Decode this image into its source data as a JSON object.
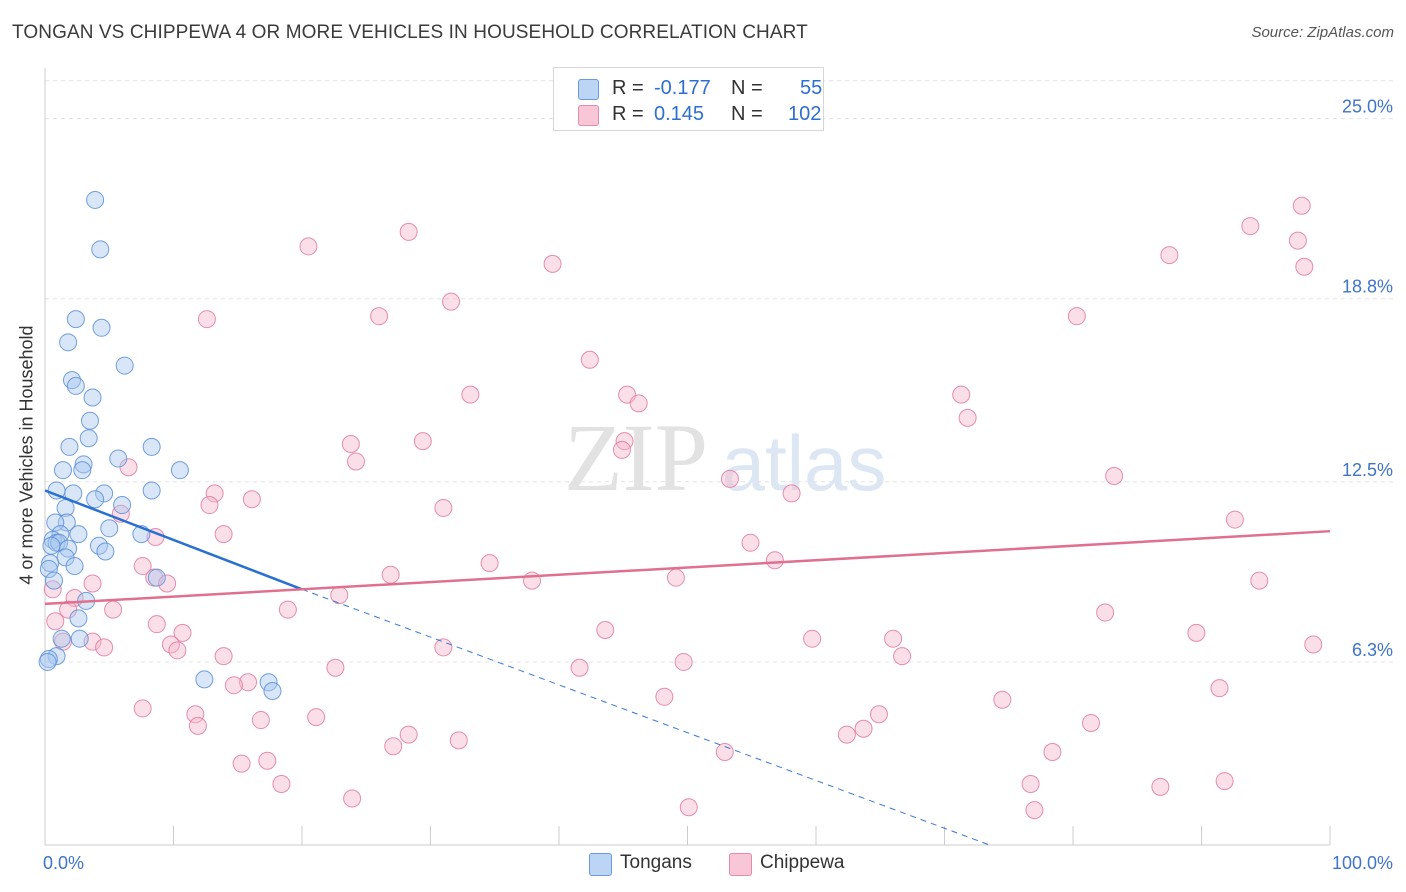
{
  "title": "TONGAN VS CHIPPEWA 4 OR MORE VEHICLES IN HOUSEHOLD CORRELATION CHART",
  "source": "Source: ZipAtlas.com",
  "watermark": {
    "zip": "ZIP",
    "atlas": "atlas"
  },
  "legend": {
    "r_label": "R =",
    "n_label": "N =",
    "rows": [
      {
        "name": "Tongans",
        "r": "-0.177",
        "n": "55",
        "color": "#a8c8f0",
        "stroke": "#5b8fd6"
      },
      {
        "name": "Chippewa",
        "r": "0.145",
        "n": "102",
        "color": "#f6b8cb",
        "stroke": "#e07ba0"
      }
    ]
  },
  "chart_data": {
    "type": "scatter",
    "title": "TONGAN VS CHIPPEWA 4 OR MORE VEHICLES IN HOUSEHOLD CORRELATION CHART",
    "xlabel": "",
    "ylabel": "4 or more Vehicles in Household",
    "xlim": [
      0,
      100
    ],
    "ylim": [
      0,
      26.5
    ],
    "x_tick_labels": [
      "0.0%",
      "100.0%"
    ],
    "y_ticks": [
      6.3,
      12.5,
      18.8,
      25.0
    ],
    "y_tick_labels": [
      "6.3%",
      "12.5%",
      "18.8%",
      "25.0%"
    ],
    "grid": true,
    "series": [
      {
        "name": "Tongans",
        "color": "#a8c8f0",
        "stroke": "#5b8fd6",
        "trend": {
          "x0": 0,
          "y0": 12.2,
          "x1": 20,
          "y1": 8.8,
          "dash_to_x": 73.5,
          "dash_to_y": 0
        },
        "points": [
          [
            3.9,
            22.2
          ],
          [
            4.3,
            20.5
          ],
          [
            2.4,
            18.1
          ],
          [
            4.4,
            17.8
          ],
          [
            1.8,
            17.3
          ],
          [
            6.2,
            16.5
          ],
          [
            2.1,
            16.0
          ],
          [
            2.4,
            15.8
          ],
          [
            3.7,
            15.4
          ],
          [
            3.5,
            14.6
          ],
          [
            3.4,
            14.0
          ],
          [
            1.9,
            13.7
          ],
          [
            8.3,
            13.7
          ],
          [
            5.7,
            13.3
          ],
          [
            3.0,
            13.1
          ],
          [
            2.9,
            12.9
          ],
          [
            1.4,
            12.9
          ],
          [
            10.5,
            12.9
          ],
          [
            0.9,
            12.2
          ],
          [
            2.2,
            12.1
          ],
          [
            4.6,
            12.1
          ],
          [
            8.3,
            12.2
          ],
          [
            3.9,
            11.9
          ],
          [
            6.0,
            11.7
          ],
          [
            1.6,
            11.6
          ],
          [
            1.7,
            11.1
          ],
          [
            0.8,
            11.1
          ],
          [
            5.0,
            10.9
          ],
          [
            7.5,
            10.7
          ],
          [
            2.6,
            10.7
          ],
          [
            1.2,
            10.7
          ],
          [
            0.6,
            10.5
          ],
          [
            0.9,
            10.4
          ],
          [
            1.1,
            10.4
          ],
          [
            0.5,
            10.3
          ],
          [
            4.2,
            10.3
          ],
          [
            1.8,
            10.2
          ],
          [
            4.7,
            10.1
          ],
          [
            1.6,
            9.9
          ],
          [
            0.4,
            9.7
          ],
          [
            2.3,
            9.6
          ],
          [
            0.3,
            9.5
          ],
          [
            0.7,
            9.1
          ],
          [
            8.7,
            9.2
          ],
          [
            3.2,
            8.4
          ],
          [
            2.6,
            7.8
          ],
          [
            1.3,
            7.1
          ],
          [
            2.7,
            7.1
          ],
          [
            0.9,
            6.5
          ],
          [
            0.3,
            6.4
          ],
          [
            0.2,
            6.3
          ],
          [
            12.4,
            5.7
          ],
          [
            17.4,
            5.6
          ],
          [
            17.7,
            5.3
          ]
        ]
      },
      {
        "name": "Chippewa",
        "color": "#f6b8cb",
        "stroke": "#e07ba0",
        "trend": {
          "x0": 0,
          "y0": 8.3,
          "x1": 100,
          "y1": 10.8
        },
        "points": [
          [
            97.8,
            22.0
          ],
          [
            93.8,
            21.3
          ],
          [
            97.5,
            20.8
          ],
          [
            28.3,
            21.1
          ],
          [
            20.5,
            20.6
          ],
          [
            87.5,
            20.3
          ],
          [
            98.0,
            19.9
          ],
          [
            39.5,
            20.0
          ],
          [
            31.6,
            18.7
          ],
          [
            12.6,
            18.1
          ],
          [
            26.0,
            18.2
          ],
          [
            80.3,
            18.2
          ],
          [
            42.4,
            16.7
          ],
          [
            45.3,
            15.5
          ],
          [
            46.2,
            15.2
          ],
          [
            33.1,
            15.5
          ],
          [
            71.3,
            15.5
          ],
          [
            71.8,
            14.7
          ],
          [
            23.8,
            13.8
          ],
          [
            29.4,
            13.9
          ],
          [
            45.1,
            13.9
          ],
          [
            24.2,
            13.2
          ],
          [
            44.9,
            13.6
          ],
          [
            6.5,
            13.0
          ],
          [
            83.2,
            12.7
          ],
          [
            53.3,
            12.6
          ],
          [
            58.1,
            12.1
          ],
          [
            13.2,
            12.1
          ],
          [
            16.1,
            11.9
          ],
          [
            12.8,
            11.7
          ],
          [
            31.0,
            11.6
          ],
          [
            5.9,
            11.4
          ],
          [
            92.6,
            11.2
          ],
          [
            13.9,
            10.7
          ],
          [
            8.6,
            10.6
          ],
          [
            54.9,
            10.4
          ],
          [
            56.8,
            9.8
          ],
          [
            34.6,
            9.7
          ],
          [
            7.6,
            9.6
          ],
          [
            26.9,
            9.3
          ],
          [
            8.5,
            9.2
          ],
          [
            37.9,
            9.1
          ],
          [
            49.1,
            9.2
          ],
          [
            94.5,
            9.1
          ],
          [
            9.5,
            9.0
          ],
          [
            3.7,
            9.0
          ],
          [
            2.3,
            8.5
          ],
          [
            22.9,
            8.6
          ],
          [
            1.8,
            8.1
          ],
          [
            5.3,
            8.1
          ],
          [
            18.9,
            8.1
          ],
          [
            82.5,
            8.0
          ],
          [
            0.8,
            7.7
          ],
          [
            8.7,
            7.6
          ],
          [
            43.6,
            7.4
          ],
          [
            10.7,
            7.3
          ],
          [
            89.6,
            7.3
          ],
          [
            98.7,
            6.9
          ],
          [
            59.7,
            7.1
          ],
          [
            66.0,
            7.1
          ],
          [
            1.4,
            7.0
          ],
          [
            3.7,
            7.0
          ],
          [
            9.8,
            6.9
          ],
          [
            4.6,
            6.8
          ],
          [
            31.0,
            6.8
          ],
          [
            10.3,
            6.7
          ],
          [
            13.9,
            6.5
          ],
          [
            66.7,
            6.5
          ],
          [
            49.7,
            6.3
          ],
          [
            22.6,
            6.1
          ],
          [
            41.6,
            6.1
          ],
          [
            15.8,
            5.6
          ],
          [
            14.7,
            5.5
          ],
          [
            91.4,
            5.4
          ],
          [
            48.2,
            5.1
          ],
          [
            74.5,
            5.0
          ],
          [
            7.6,
            4.7
          ],
          [
            11.7,
            4.5
          ],
          [
            21.1,
            4.4
          ],
          [
            16.8,
            4.3
          ],
          [
            81.4,
            4.2
          ],
          [
            64.9,
            4.5
          ],
          [
            11.9,
            4.1
          ],
          [
            63.7,
            4.0
          ],
          [
            62.4,
            3.8
          ],
          [
            28.3,
            3.8
          ],
          [
            32.2,
            3.6
          ],
          [
            27.1,
            3.4
          ],
          [
            52.9,
            3.2
          ],
          [
            78.4,
            3.2
          ],
          [
            17.3,
            2.9
          ],
          [
            15.3,
            2.8
          ],
          [
            76.7,
            2.1
          ],
          [
            18.4,
            2.1
          ],
          [
            91.8,
            2.2
          ],
          [
            86.8,
            2.0
          ],
          [
            23.9,
            1.6
          ],
          [
            50.1,
            1.3
          ],
          [
            77.0,
            1.2
          ],
          [
            0.6,
            8.8
          ]
        ]
      }
    ]
  }
}
